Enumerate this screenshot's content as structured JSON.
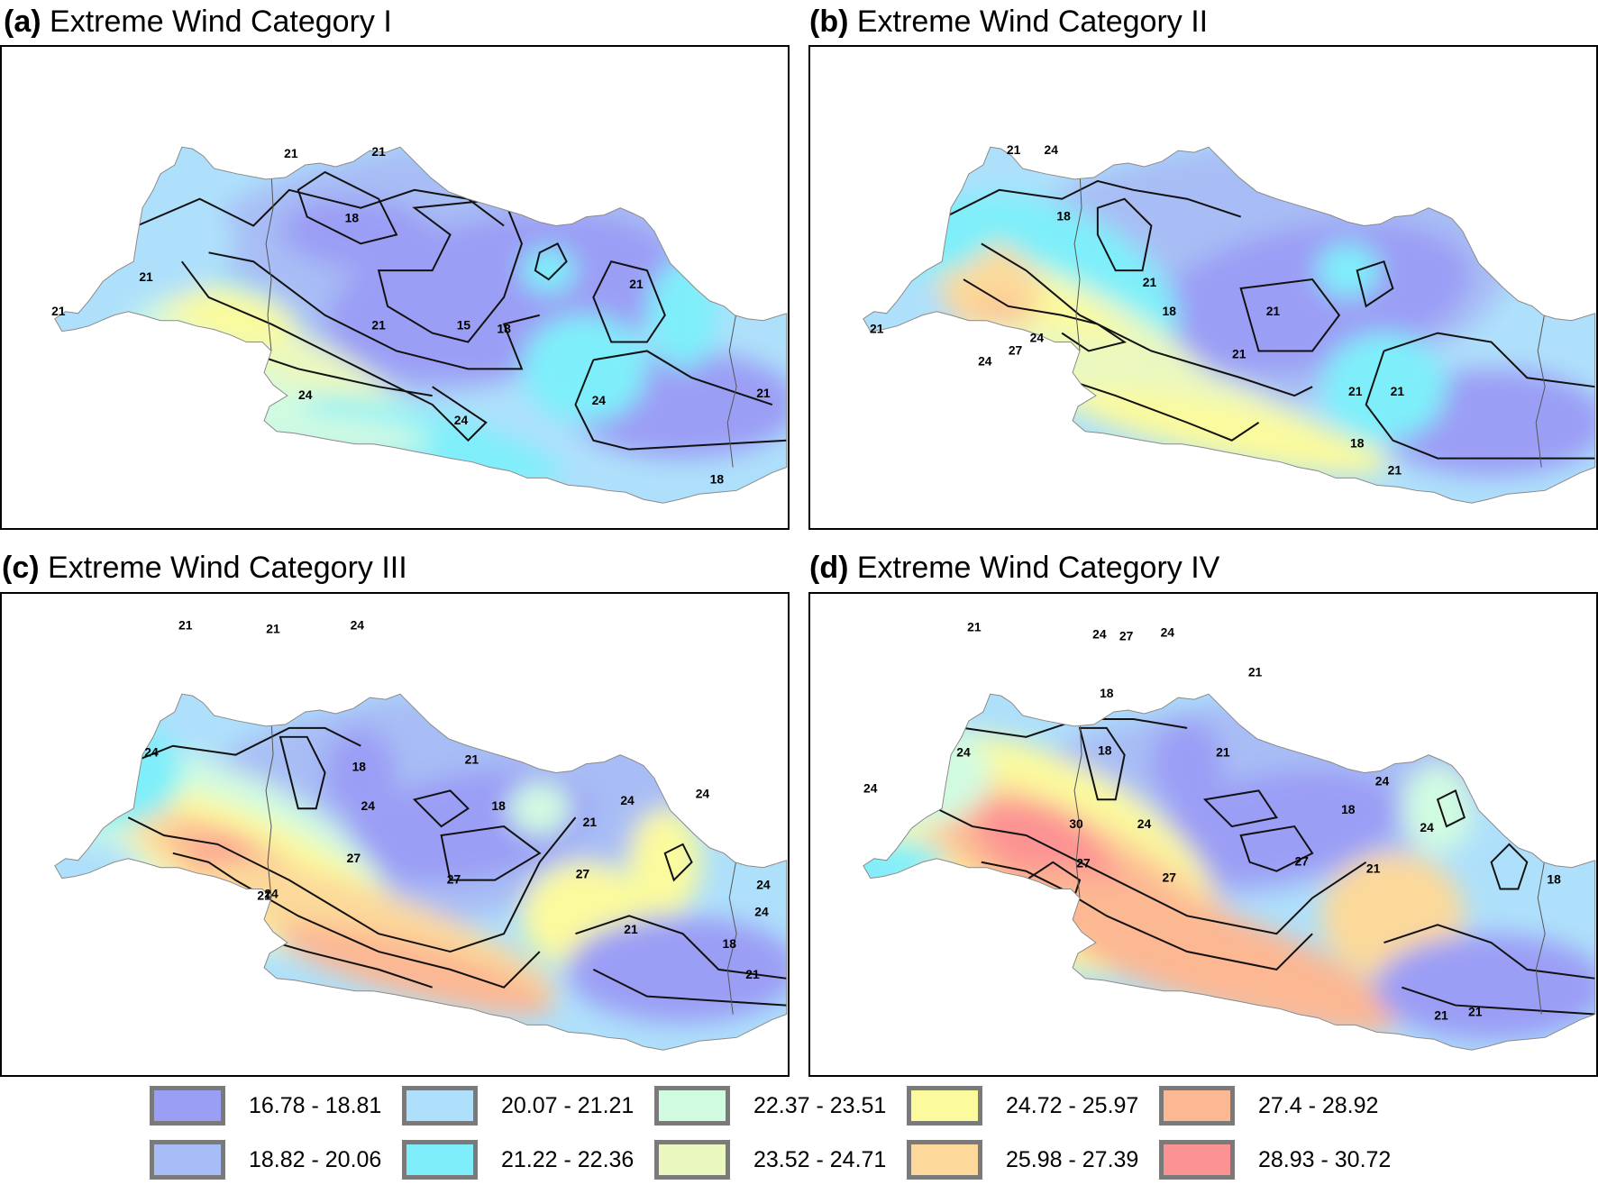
{
  "panels": [
    {
      "id": "a",
      "tag": "(a)",
      "title": "Extreme Wind Category I",
      "contour_labels": [
        "21",
        "21",
        "18",
        "21",
        "21",
        "15",
        "18",
        "21",
        "21",
        "24",
        "24",
        "24",
        "21",
        "18"
      ]
    },
    {
      "id": "b",
      "tag": "(b)",
      "title": "Extreme Wind Category II",
      "contour_labels": [
        "21",
        "24",
        "18",
        "21",
        "21",
        "18",
        "21",
        "21",
        "24",
        "27",
        "24",
        "21",
        "21",
        "18",
        "21"
      ]
    },
    {
      "id": "c",
      "tag": "(c)",
      "title": "Extreme Wind Category III",
      "contour_labels": [
        "21",
        "21",
        "24",
        "18",
        "24",
        "21",
        "18",
        "21",
        "24",
        "24",
        "24",
        "27",
        "27",
        "27",
        "21",
        "24",
        "24",
        "18",
        "21",
        "21",
        "24"
      ]
    },
    {
      "id": "d",
      "tag": "(d)",
      "title": "Extreme Wind Category IV",
      "contour_labels": [
        "21",
        "24",
        "27",
        "24",
        "21",
        "18",
        "18",
        "21",
        "24",
        "24",
        "18",
        "24",
        "27",
        "30",
        "27",
        "24",
        "27",
        "21",
        "24",
        "18",
        "21",
        "21"
      ]
    }
  ],
  "legend": [
    {
      "label": "16.78 - 18.81",
      "color": "#9b9ef5"
    },
    {
      "label": "18.82 - 20.06",
      "color": "#a8bdf5"
    },
    {
      "label": "20.07 - 21.21",
      "color": "#aee0fb"
    },
    {
      "label": "21.22 - 22.36",
      "color": "#7eeffa"
    },
    {
      "label": "22.37 - 23.51",
      "color": "#d1fbe1"
    },
    {
      "label": "23.52 - 24.71",
      "color": "#eaf8c0"
    },
    {
      "label": "24.72 - 25.97",
      "color": "#fbfa9d"
    },
    {
      "label": "25.98 - 27.39",
      "color": "#fcd99a"
    },
    {
      "label": "27.4 - 28.92",
      "color": "#fcb793"
    },
    {
      "label": "28.93 - 30.72",
      "color": "#fc9393"
    }
  ]
}
